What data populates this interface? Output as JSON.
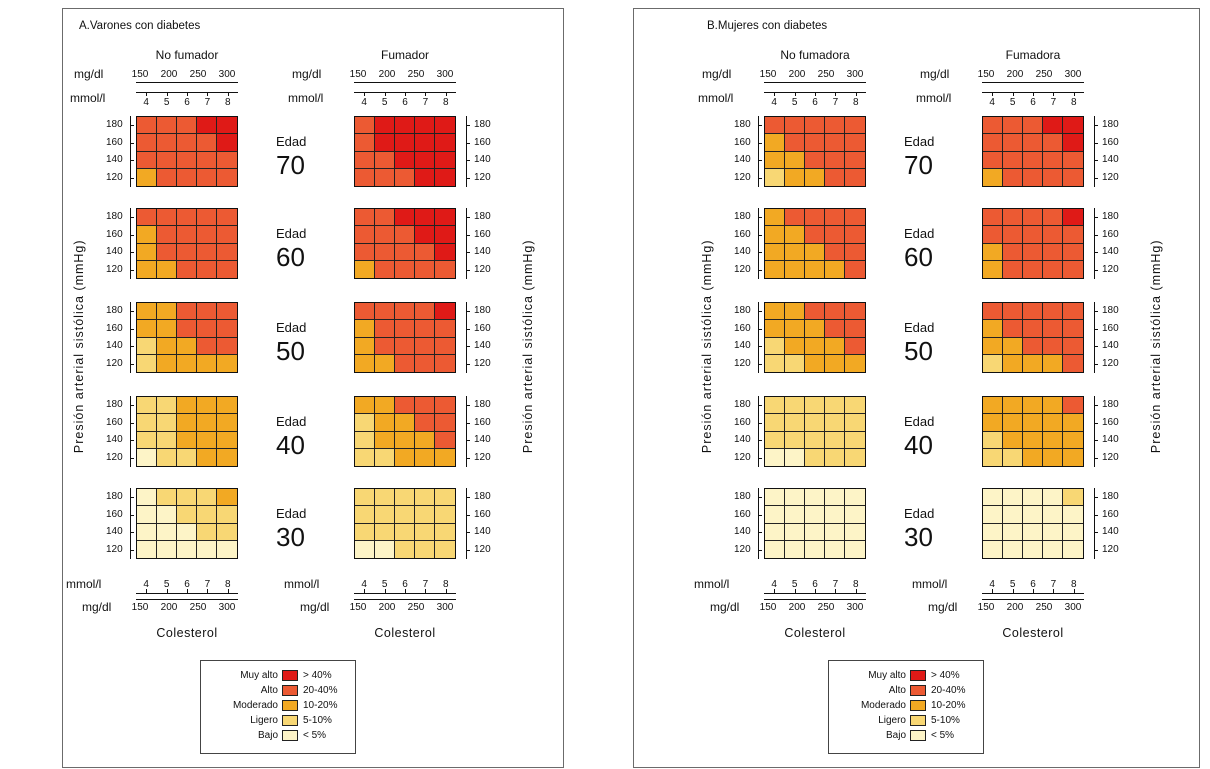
{
  "colors": {
    "muy_alto": "#df1a17",
    "alto": "#ec5a33",
    "moderado": "#f2a923",
    "ligero": "#f8d774",
    "bajo": "#fdf4c7"
  },
  "axis": {
    "mgdl_label": "mg/dl",
    "mmol_label": "mmol/l",
    "mgdl_ticks": [
      "150",
      "200",
      "250",
      "300"
    ],
    "mmol_ticks": [
      "4",
      "5",
      "6",
      "7",
      "8"
    ],
    "sbp_ticks": [
      "180",
      "160",
      "140",
      "120"
    ],
    "ylabel": "Presión arterial sistólica (mmHg)",
    "xlabel": "Colesterol",
    "edad_label": "Edad"
  },
  "legend": [
    {
      "label": "Muy alto",
      "range": "> 40%",
      "level": "muy_alto"
    },
    {
      "label": "Alto",
      "range": "20-40%",
      "level": "alto"
    },
    {
      "label": "Moderado",
      "range": "10-20%",
      "level": "moderado"
    },
    {
      "label": "Ligero",
      "range": "5-10%",
      "level": "ligero"
    },
    {
      "label": "Bajo",
      "range": "< 5%",
      "level": "bajo"
    }
  ],
  "chart_data": [
    {
      "type": "heatmap",
      "title": "A.Varones con diabetes",
      "xlabel": "Colesterol",
      "ylabel": "Presión arterial sistólica (mmHg)",
      "x_categories_mmol": [
        "4",
        "5",
        "6",
        "7",
        "8"
      ],
      "y_categories_sbp": [
        "180",
        "160",
        "140",
        "120"
      ],
      "levels": [
        "B = Bajo",
        "L = Ligero",
        "M = Moderado",
        "A = Alto",
        "X = Muy alto"
      ],
      "groups": [
        {
          "name": "No fumador",
          "ages": [
            {
              "age": "70",
              "rows": [
                "AAAXX",
                "AAAAX",
                "AAAAA",
                "MAAAA"
              ]
            },
            {
              "age": "60",
              "rows": [
                "AAAAA",
                "MAAAA",
                "MAAAA",
                "MMAAA"
              ]
            },
            {
              "age": "50",
              "rows": [
                "MMAAA",
                "MMAAA",
                "LMMAA",
                "LMMMM"
              ]
            },
            {
              "age": "40",
              "rows": [
                "LLMMM",
                "LLMMM",
                "LLMMM",
                "BLLMM"
              ]
            },
            {
              "age": "30",
              "rows": [
                "BLLLM",
                "BBLLL",
                "BBBLL",
                "BBBBB"
              ]
            }
          ]
        },
        {
          "name": "Fumador",
          "ages": [
            {
              "age": "70",
              "rows": [
                "AXXXX",
                "AXXXX",
                "AAXXX",
                "AAAXX"
              ]
            },
            {
              "age": "60",
              "rows": [
                "AAXXX",
                "AAAXX",
                "AAAAX",
                "MAAAA"
              ]
            },
            {
              "age": "50",
              "rows": [
                "AAAAX",
                "MAAAA",
                "MAAAA",
                "MMAAA"
              ]
            },
            {
              "age": "40",
              "rows": [
                "MMAAA",
                "LMMAA",
                "LMMMA",
                "LLMMM"
              ]
            },
            {
              "age": "30",
              "rows": [
                "LLLLL",
                "LLLLL",
                "LLLLL",
                "BBLLL"
              ]
            }
          ]
        }
      ]
    },
    {
      "type": "heatmap",
      "title": "B.Mujeres con diabetes",
      "xlabel": "Colesterol",
      "ylabel": "Presión arterial sistólica (mmHg)",
      "x_categories_mmol": [
        "4",
        "5",
        "6",
        "7",
        "8"
      ],
      "y_categories_sbp": [
        "180",
        "160",
        "140",
        "120"
      ],
      "levels": [
        "B = Bajo",
        "L = Ligero",
        "M = Moderado",
        "A = Alto",
        "X = Muy alto"
      ],
      "groups": [
        {
          "name": "No fumadora",
          "ages": [
            {
              "age": "70",
              "rows": [
                "AAAAA",
                "MAAAA",
                "MMAAA",
                "LMMAA"
              ]
            },
            {
              "age": "60",
              "rows": [
                "MAAAA",
                "MMAAA",
                "MMMAA",
                "MMMMA"
              ]
            },
            {
              "age": "50",
              "rows": [
                "MMAAA",
                "MMMAA",
                "LMMMA",
                "LLMMM"
              ]
            },
            {
              "age": "40",
              "rows": [
                "LLLLL",
                "LLLLL",
                "LLLLL",
                "BBLLL"
              ]
            },
            {
              "age": "30",
              "rows": [
                "BBBBB",
                "BBBBB",
                "BBBBB",
                "BBBBB"
              ]
            }
          ]
        },
        {
          "name": "Fumadora",
          "ages": [
            {
              "age": "70",
              "rows": [
                "AAAXX",
                "AAAAX",
                "AAAAA",
                "MAAAA"
              ]
            },
            {
              "age": "60",
              "rows": [
                "AAAAX",
                "AAAAA",
                "MAAAA",
                "MAAAA"
              ]
            },
            {
              "age": "50",
              "rows": [
                "AAAAA",
                "MAAAA",
                "MMAAA",
                "LMMMA"
              ]
            },
            {
              "age": "40",
              "rows": [
                "MMMMA",
                "MMMMM",
                "LMMMM",
                "LLMMM"
              ]
            },
            {
              "age": "30",
              "rows": [
                "BBBBL",
                "BBBBB",
                "BBBBB",
                "BBBBB"
              ]
            }
          ]
        }
      ]
    }
  ]
}
